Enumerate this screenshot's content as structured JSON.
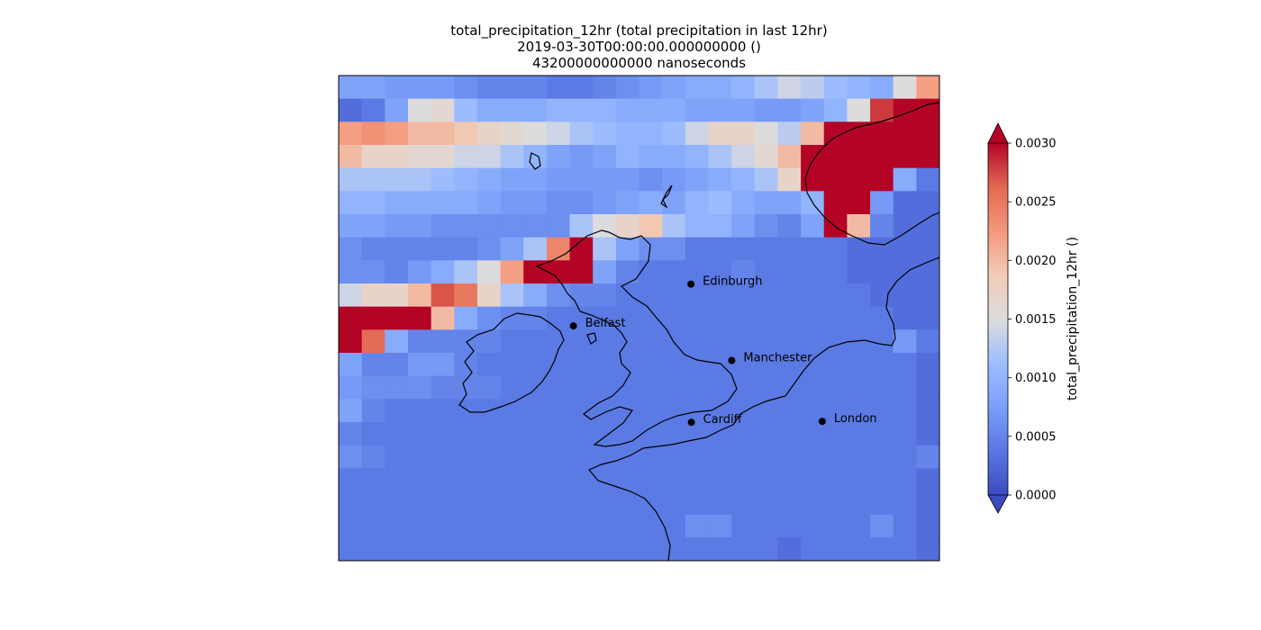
{
  "title": {
    "line1": "total_precipitation_12hr (total precipitation in last 12hr)",
    "line2": "2019-03-30T00:00:00.000000000 ()",
    "line3": "43200000000000 nanoseconds"
  },
  "colorbar": {
    "label": "total_precipitation_12hr ()",
    "ticks": [
      "0.0000",
      "0.0005",
      "0.0010",
      "0.0015",
      "0.0020",
      "0.0025",
      "0.0030"
    ],
    "vmin": 0.0,
    "vmax": 0.003,
    "extend": "both"
  },
  "cities": [
    {
      "name": "Edinburgh",
      "lon": -3.19,
      "lat": 55.95
    },
    {
      "name": "Belfast",
      "lon": -5.93,
      "lat": 54.6
    },
    {
      "name": "Manchester",
      "lon": -2.24,
      "lat": 53.48
    },
    {
      "name": "Cardiff",
      "lon": -3.18,
      "lat": 51.48
    },
    {
      "name": "London",
      "lon": -0.13,
      "lat": 51.51
    }
  ],
  "chart_data": {
    "type": "heatmap",
    "title": "total_precipitation_12hr (total precipitation in last 12hr)",
    "variable": "total_precipitation_12hr",
    "units": "",
    "time": "2019-03-30T00:00:00.000000000",
    "lead_time": "43200000000000 nanoseconds",
    "grid_rows": 21,
    "grid_cols": 26,
    "row_order": "north-to-south",
    "values": [
      [
        0.0008,
        0.0008,
        0.0007,
        0.0007,
        0.0007,
        0.0006,
        0.0005,
        0.0005,
        0.0005,
        0.0004,
        0.0004,
        0.0005,
        0.0006,
        0.0007,
        0.0008,
        0.0009,
        0.0009,
        0.001,
        0.0012,
        0.0014,
        0.0013,
        0.0011,
        0.001,
        0.0009,
        0.0015,
        0.0022
      ],
      [
        0.0003,
        0.0004,
        0.0008,
        0.0015,
        0.0016,
        0.0011,
        0.0009,
        0.0009,
        0.0009,
        0.001,
        0.001,
        0.001,
        0.0009,
        0.0009,
        0.0009,
        0.0008,
        0.0008,
        0.0008,
        0.0007,
        0.0007,
        0.0008,
        0.001,
        0.0015,
        0.0028,
        0.003,
        0.003
      ],
      [
        0.0022,
        0.0023,
        0.0022,
        0.002,
        0.002,
        0.0019,
        0.0017,
        0.0016,
        0.0015,
        0.0014,
        0.0012,
        0.0011,
        0.001,
        0.001,
        0.0011,
        0.0014,
        0.0017,
        0.0017,
        0.0015,
        0.0013,
        0.002,
        0.003,
        0.003,
        0.003,
        0.003,
        0.003
      ],
      [
        0.002,
        0.0017,
        0.0017,
        0.0016,
        0.0016,
        0.0014,
        0.0014,
        0.0012,
        0.001,
        0.0008,
        0.0007,
        0.0008,
        0.001,
        0.0009,
        0.0009,
        0.001,
        0.0012,
        0.0014,
        0.0016,
        0.002,
        0.003,
        0.003,
        0.003,
        0.003,
        0.003,
        0.003
      ],
      [
        0.0012,
        0.0012,
        0.0012,
        0.0012,
        0.0011,
        0.001,
        0.0009,
        0.0008,
        0.0008,
        0.0007,
        0.0007,
        0.0007,
        0.0007,
        0.0006,
        0.0007,
        0.0008,
        0.0009,
        0.001,
        0.0012,
        0.0017,
        0.003,
        0.003,
        0.003,
        0.003,
        0.0009,
        0.0004
      ],
      [
        0.001,
        0.001,
        0.0009,
        0.0009,
        0.0009,
        0.0009,
        0.0008,
        0.0007,
        0.0007,
        0.0006,
        0.0006,
        0.0007,
        0.0008,
        0.0009,
        0.0008,
        0.001,
        0.0011,
        0.0009,
        0.0008,
        0.0008,
        0.001,
        0.003,
        0.003,
        0.0007,
        0.0003,
        0.0003
      ],
      [
        0.0008,
        0.0008,
        0.0007,
        0.0007,
        0.0006,
        0.0006,
        0.0006,
        0.0006,
        0.0006,
        0.0006,
        0.0012,
        0.0015,
        0.0017,
        0.0019,
        0.0012,
        0.001,
        0.001,
        0.0008,
        0.0006,
        0.0005,
        0.0008,
        0.003,
        0.002,
        0.0005,
        0.0003,
        0.0003
      ],
      [
        0.0006,
        0.0005,
        0.0005,
        0.0005,
        0.0005,
        0.0005,
        0.0006,
        0.0008,
        0.0012,
        0.0024,
        0.003,
        0.0012,
        0.0008,
        0.0006,
        0.0006,
        0.0004,
        0.0004,
        0.0004,
        0.0004,
        0.0004,
        0.0004,
        0.0004,
        0.0003,
        0.0003,
        0.0003,
        0.0003
      ],
      [
        0.0006,
        0.0006,
        0.0005,
        0.0007,
        0.0009,
        0.0012,
        0.0015,
        0.0022,
        0.003,
        0.003,
        0.003,
        0.0008,
        0.0005,
        0.0004,
        0.0004,
        0.0004,
        0.0004,
        0.0005,
        0.0004,
        0.0004,
        0.0004,
        0.0004,
        0.0003,
        0.0003,
        0.0003,
        0.0003
      ],
      [
        0.0014,
        0.0017,
        0.0017,
        0.002,
        0.0027,
        0.0025,
        0.0017,
        0.0012,
        0.0009,
        0.0006,
        0.0005,
        0.0005,
        0.0004,
        0.0004,
        0.0004,
        0.0004,
        0.0004,
        0.0004,
        0.0004,
        0.0004,
        0.0004,
        0.0004,
        0.0004,
        0.0003,
        0.0003,
        0.0003
      ],
      [
        0.003,
        0.003,
        0.003,
        0.003,
        0.002,
        0.0009,
        0.0006,
        0.0005,
        0.0005,
        0.0004,
        0.0004,
        0.0004,
        0.0004,
        0.0004,
        0.0004,
        0.0004,
        0.0004,
        0.0004,
        0.0004,
        0.0004,
        0.0004,
        0.0004,
        0.0004,
        0.0004,
        0.0003,
        0.0003
      ],
      [
        0.003,
        0.0026,
        0.0009,
        0.0005,
        0.0005,
        0.0005,
        0.0005,
        0.0004,
        0.0004,
        0.0004,
        0.0004,
        0.0004,
        0.0004,
        0.0004,
        0.0004,
        0.0004,
        0.0004,
        0.0004,
        0.0004,
        0.0004,
        0.0004,
        0.0004,
        0.0004,
        0.0004,
        0.0007,
        0.0004
      ],
      [
        0.0008,
        0.0005,
        0.0005,
        0.0007,
        0.0007,
        0.0005,
        0.0004,
        0.0004,
        0.0004,
        0.0004,
        0.0004,
        0.0004,
        0.0004,
        0.0004,
        0.0004,
        0.0004,
        0.0004,
        0.0004,
        0.0004,
        0.0004,
        0.0004,
        0.0004,
        0.0004,
        0.0004,
        0.0004,
        0.0003
      ],
      [
        0.0007,
        0.0006,
        0.0006,
        0.0006,
        0.0005,
        0.0005,
        0.0005,
        0.0004,
        0.0004,
        0.0004,
        0.0004,
        0.0004,
        0.0004,
        0.0004,
        0.0004,
        0.0004,
        0.0004,
        0.0004,
        0.0004,
        0.0004,
        0.0004,
        0.0004,
        0.0004,
        0.0004,
        0.0004,
        0.0003
      ],
      [
        0.0008,
        0.0005,
        0.0004,
        0.0004,
        0.0004,
        0.0004,
        0.0004,
        0.0004,
        0.0004,
        0.0004,
        0.0004,
        0.0004,
        0.0004,
        0.0004,
        0.0004,
        0.0004,
        0.0004,
        0.0004,
        0.0004,
        0.0004,
        0.0004,
        0.0004,
        0.0004,
        0.0004,
        0.0004,
        0.0003
      ],
      [
        0.0005,
        0.0004,
        0.0004,
        0.0004,
        0.0004,
        0.0004,
        0.0004,
        0.0004,
        0.0004,
        0.0004,
        0.0004,
        0.0004,
        0.0004,
        0.0004,
        0.0004,
        0.0004,
        0.0004,
        0.0004,
        0.0004,
        0.0004,
        0.0004,
        0.0004,
        0.0004,
        0.0004,
        0.0004,
        0.0003
      ],
      [
        0.0006,
        0.0005,
        0.0004,
        0.0004,
        0.0004,
        0.0004,
        0.0004,
        0.0004,
        0.0004,
        0.0004,
        0.0004,
        0.0004,
        0.0004,
        0.0004,
        0.0004,
        0.0004,
        0.0004,
        0.0004,
        0.0004,
        0.0004,
        0.0004,
        0.0004,
        0.0004,
        0.0004,
        0.0004,
        0.0005
      ],
      [
        0.0004,
        0.0004,
        0.0004,
        0.0004,
        0.0004,
        0.0004,
        0.0004,
        0.0004,
        0.0004,
        0.0004,
        0.0004,
        0.0004,
        0.0004,
        0.0004,
        0.0004,
        0.0004,
        0.0004,
        0.0004,
        0.0004,
        0.0004,
        0.0004,
        0.0004,
        0.0004,
        0.0004,
        0.0004,
        0.0003
      ],
      [
        0.0004,
        0.0004,
        0.0004,
        0.0004,
        0.0004,
        0.0004,
        0.0004,
        0.0004,
        0.0004,
        0.0004,
        0.0004,
        0.0004,
        0.0004,
        0.0004,
        0.0004,
        0.0004,
        0.0004,
        0.0004,
        0.0004,
        0.0004,
        0.0004,
        0.0004,
        0.0004,
        0.0004,
        0.0004,
        0.0003
      ],
      [
        0.0004,
        0.0004,
        0.0004,
        0.0004,
        0.0004,
        0.0004,
        0.0004,
        0.0004,
        0.0004,
        0.0004,
        0.0004,
        0.0004,
        0.0004,
        0.0004,
        0.0004,
        0.0006,
        0.0006,
        0.0004,
        0.0004,
        0.0004,
        0.0004,
        0.0004,
        0.0004,
        0.0006,
        0.0004,
        0.0003
      ],
      [
        0.0004,
        0.0004,
        0.0004,
        0.0004,
        0.0004,
        0.0004,
        0.0004,
        0.0004,
        0.0004,
        0.0004,
        0.0004,
        0.0004,
        0.0004,
        0.0004,
        0.0004,
        0.0004,
        0.0004,
        0.0004,
        0.0004,
        0.0003,
        0.0004,
        0.0004,
        0.0004,
        0.0004,
        0.0004,
        0.0003
      ]
    ]
  }
}
